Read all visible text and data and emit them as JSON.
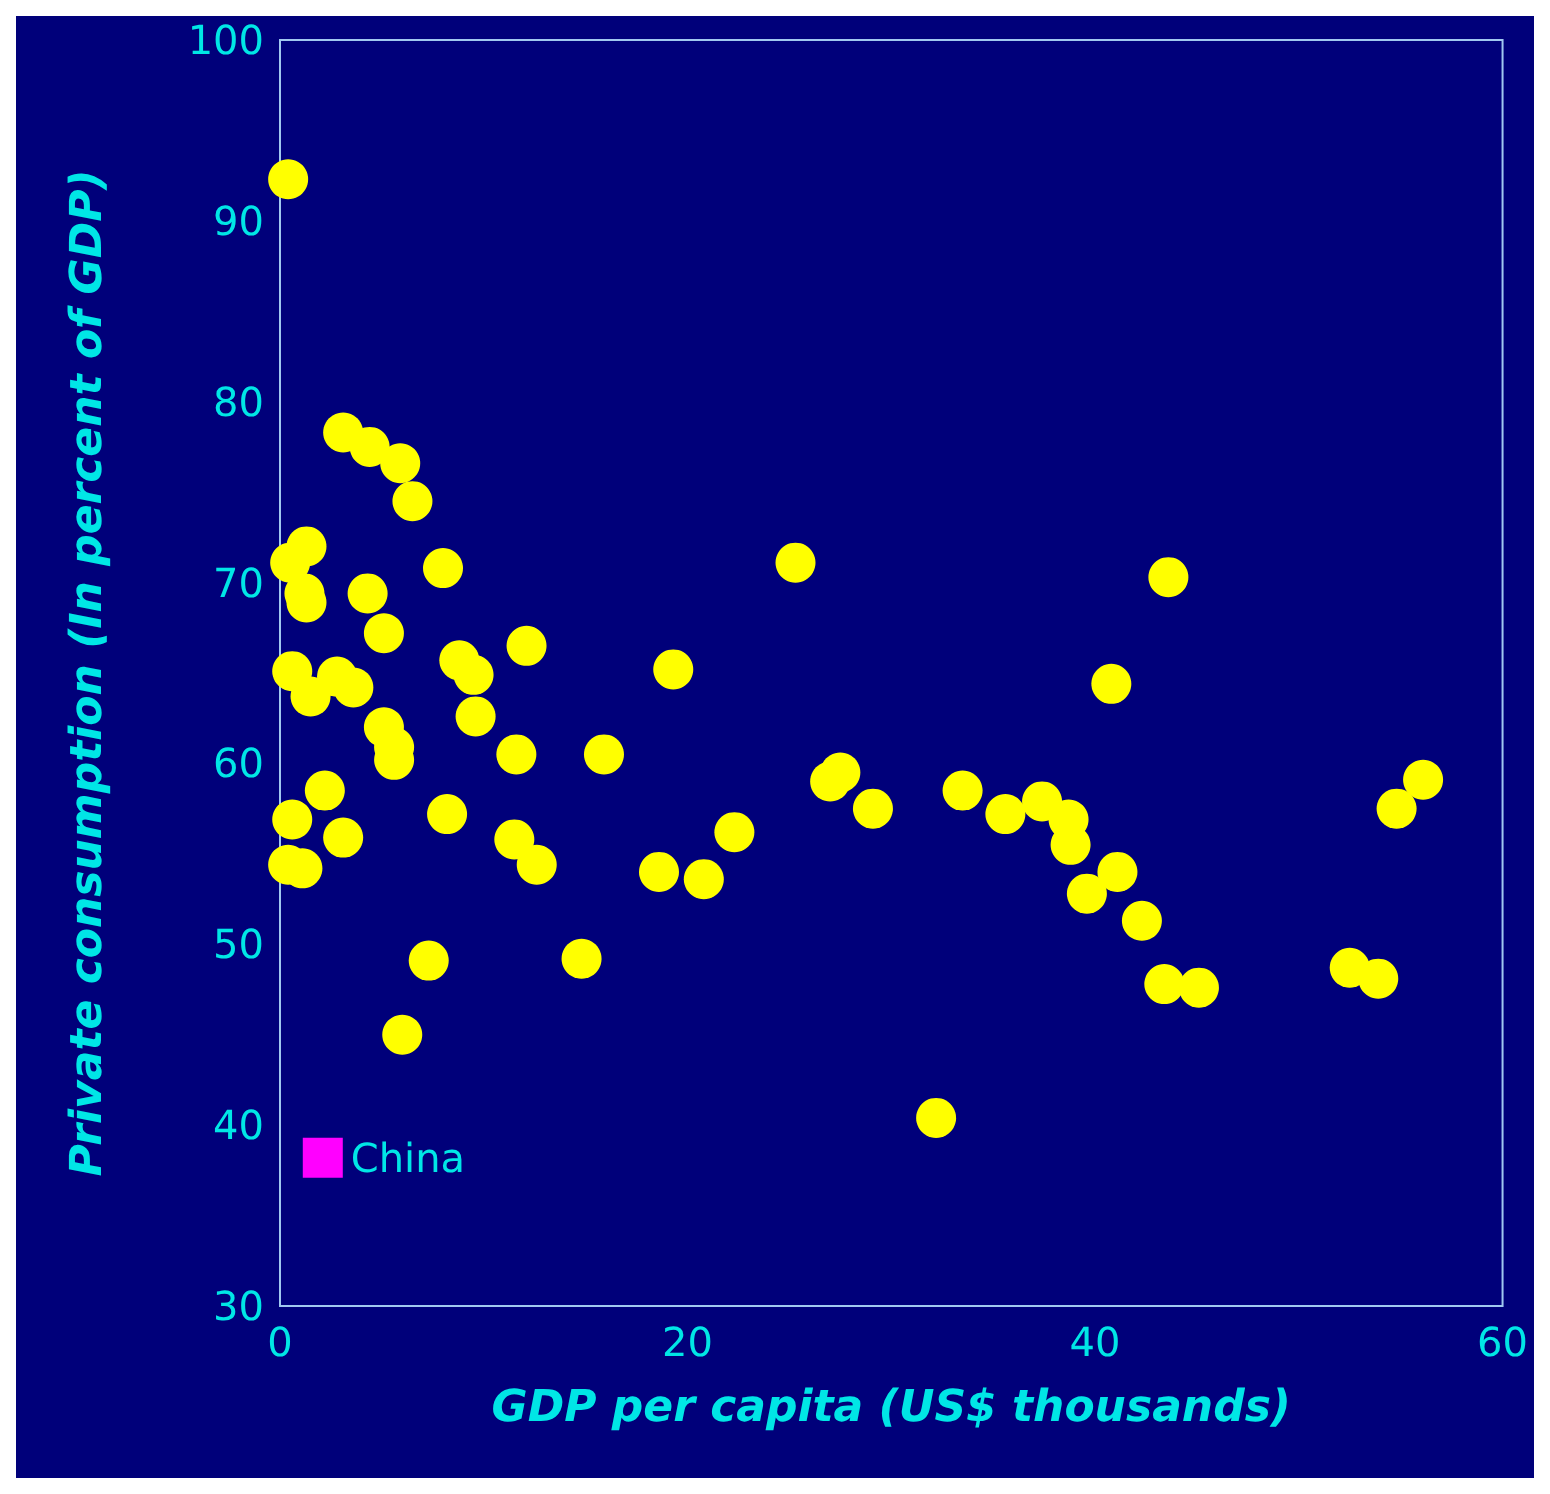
{
  "chart_data": {
    "type": "scatter",
    "xlabel": "GDP per capita (US$ thousands)",
    "ylabel": "Private consumption (In percent of GDP)",
    "xlim": [
      0,
      60
    ],
    "xticks": [
      0,
      20,
      40,
      60
    ],
    "ylim": [
      30,
      100
    ],
    "yticks": [
      30,
      40,
      50,
      60,
      70,
      80,
      90,
      100
    ],
    "grid": false,
    "legend": false,
    "marker": "circle",
    "series": [
      {
        "color": "#ffff00",
        "x": [
          0.4,
          3.1,
          4.4,
          5.9,
          6.5,
          0.5,
          1.3,
          1.2,
          1.3,
          4.3,
          8.0,
          5.1,
          12.1,
          0.6,
          2.8,
          3.6,
          1.5,
          8.8,
          9.5,
          9.6,
          5.1,
          5.6,
          5.6,
          2.2,
          11.6,
          15.9,
          19.3,
          25.3,
          0.6,
          3.1,
          8.2,
          11.5,
          12.6,
          0.4,
          1.1,
          22.3,
          18.6,
          20.8,
          7.3,
          14.8,
          6.0,
          32.2,
          43.6,
          40.8,
          27.5,
          27.0,
          29.1,
          33.5,
          35.6,
          37.4,
          38.7,
          38.8,
          41.1,
          39.6,
          42.3,
          43.4,
          45.1,
          56.1,
          54.8,
          52.5,
          53.9
        ],
        "values": [
          92.3,
          78.3,
          77.5,
          76.6,
          74.5,
          71.1,
          72.0,
          69.4,
          68.9,
          69.4,
          70.8,
          67.2,
          66.5,
          65.1,
          64.8,
          64.2,
          63.7,
          65.7,
          64.9,
          62.6,
          62.0,
          60.9,
          60.2,
          58.5,
          60.5,
          60.5,
          65.2,
          71.1,
          56.9,
          55.9,
          57.2,
          55.8,
          54.4,
          54.4,
          54.2,
          56.2,
          54.0,
          53.6,
          49.1,
          49.2,
          45.0,
          40.4,
          70.3,
          64.4,
          59.5,
          59.0,
          57.5,
          58.5,
          57.2,
          57.9,
          56.9,
          55.5,
          54.0,
          52.8,
          51.3,
          47.8,
          47.6,
          59.1,
          57.5,
          48.7,
          48.1
        ]
      },
      {
        "name": "China",
        "color": "#ff00ff",
        "marker": "square",
        "x": [
          2.1
        ],
        "values": [
          38.2
        ]
      }
    ]
  }
}
